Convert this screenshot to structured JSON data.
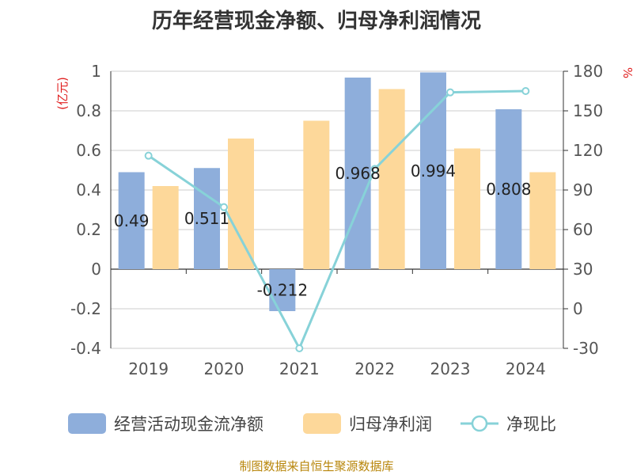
{
  "title": "历年经营现金净额、归母净利润情况",
  "footer": "制图数据来自恒生聚源数据库",
  "chart_data": {
    "type": "bar",
    "categories": [
      "2019",
      "2020",
      "2021",
      "2022",
      "2023",
      "2024"
    ],
    "left_axis": {
      "unit": "(亿元)",
      "ylim": [
        -0.4,
        1
      ],
      "ticks": [
        "1",
        "0.8",
        "0.6",
        "0.4",
        "0.2",
        "0",
        "-0.2",
        "-0.4"
      ]
    },
    "right_axis": {
      "unit": "%",
      "ylim": [
        -30,
        180
      ],
      "ticks": [
        "180",
        "150",
        "120",
        "90",
        "60",
        "30",
        "0",
        "-30"
      ]
    },
    "series": [
      {
        "name": "经营活动现金流净额",
        "type": "bar",
        "color": "#8eaedb",
        "values": [
          0.49,
          0.511,
          -0.212,
          0.968,
          0.994,
          0.808
        ],
        "labels": [
          "0.49",
          "0.511",
          "-0.212",
          "0.968",
          "0.994",
          "0.808"
        ]
      },
      {
        "name": "归母净利润",
        "type": "bar",
        "color": "#fdd89a",
        "values": [
          0.42,
          0.66,
          0.75,
          0.91,
          0.61,
          0.49
        ]
      },
      {
        "name": "净现比",
        "type": "line",
        "color": "#87d2d8",
        "values": [
          116,
          77,
          -30,
          106,
          164,
          165
        ]
      }
    ],
    "grid": true,
    "legend_position": "bottom"
  }
}
